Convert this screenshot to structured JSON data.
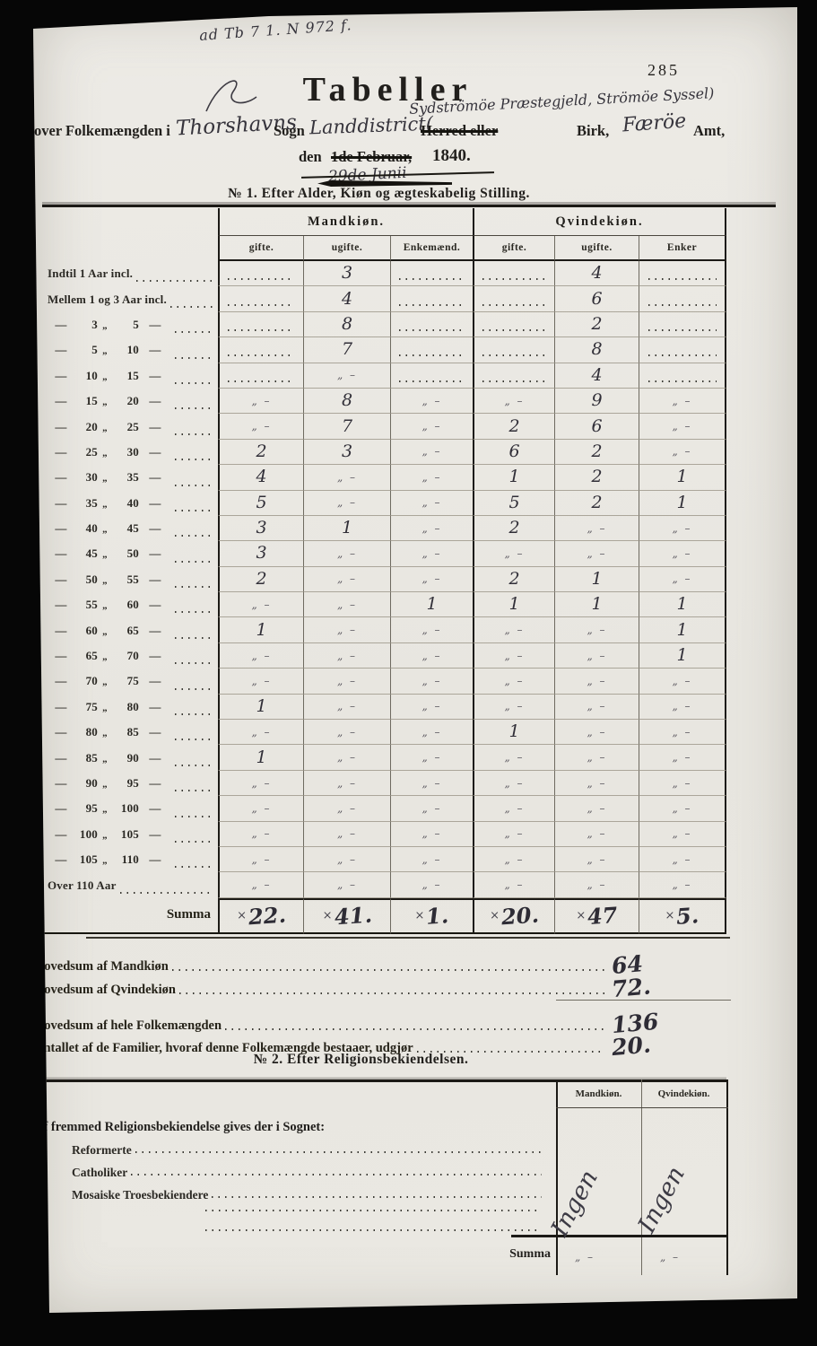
{
  "glyphs": {
    "ditto": "„ –",
    "tick": "×",
    "range_dash": "—",
    "range_quote": "„"
  },
  "page": {
    "archival_note": "ad Tb 7 1. N 972 f.",
    "page_number": "285",
    "title": "Tabeller",
    "subtitle_prefix": "over Folkemængden i",
    "place_handwritten": "Thorshavns",
    "sogn_label": "Sogn",
    "landdistrict_handwritten": "Landdistrict(",
    "struck_herred": "Herred eller",
    "interline_handwritten": "Sydströmöe Præstegjeld, Strömöe Syssel)",
    "birk_label": "Birk,",
    "amt_handwritten": "Færöe",
    "amt_label": "Amt,",
    "date_prefix": "den",
    "date_struck": "1de Februar,",
    "date_year": "1840.",
    "date_handwritten": "29de Junii"
  },
  "table1": {
    "heading": "№ 1.  Efter Alder, Kiøn og ægteskabelig Stilling.",
    "group_headers": [
      "Mandkiøn.",
      "Qvindekiøn."
    ],
    "sub_headers": [
      "gifte.",
      "ugifte.",
      "Enkemænd.",
      "gifte.",
      "ugifte.",
      "Enker"
    ],
    "rows": [
      {
        "text": "Indtil 1 Aar incl.",
        "cells": [
          ".",
          "3",
          ".",
          ".",
          "4",
          "."
        ]
      },
      {
        "text": "Mellem 1 og  3 Aar incl.",
        "cells": [
          ".",
          "4",
          ".",
          ".",
          "6",
          "."
        ]
      },
      {
        "from": "3",
        "to": "5",
        "cells": [
          ".",
          "8",
          ".",
          ".",
          "2",
          "."
        ]
      },
      {
        "from": "5",
        "to": "10",
        "cells": [
          ".",
          "7",
          ".",
          ".",
          "8",
          "."
        ]
      },
      {
        "from": "10",
        "to": "15",
        "cells": [
          ".",
          "-",
          ".",
          ".",
          "4",
          "."
        ]
      },
      {
        "from": "15",
        "to": "20",
        "cells": [
          "-",
          "8",
          "-",
          "-",
          "9",
          "-"
        ]
      },
      {
        "from": "20",
        "to": "25",
        "cells": [
          "-",
          "7",
          "-",
          "2",
          "6",
          "-"
        ]
      },
      {
        "from": "25",
        "to": "30",
        "cells": [
          "2",
          "3",
          "-",
          "6",
          "2",
          "-"
        ]
      },
      {
        "from": "30",
        "to": "35",
        "cells": [
          "4",
          "-",
          "-",
          "1",
          "2",
          "1"
        ]
      },
      {
        "from": "35",
        "to": "40",
        "cells": [
          "5",
          "-",
          "-",
          "5",
          "2",
          "1"
        ]
      },
      {
        "from": "40",
        "to": "45",
        "cells": [
          "3",
          "1",
          "-",
          "2",
          "-",
          "-"
        ]
      },
      {
        "from": "45",
        "to": "50",
        "cells": [
          "3",
          "-",
          "-",
          "-",
          "-",
          "-"
        ]
      },
      {
        "from": "50",
        "to": "55",
        "cells": [
          "2",
          "-",
          "-",
          "2",
          "1",
          "-"
        ]
      },
      {
        "from": "55",
        "to": "60",
        "cells": [
          "-",
          "-",
          "1",
          "1",
          "1",
          "1"
        ]
      },
      {
        "from": "60",
        "to": "65",
        "cells": [
          "1",
          "-",
          "-",
          "-",
          "-",
          "1"
        ]
      },
      {
        "from": "65",
        "to": "70",
        "cells": [
          "-",
          "-",
          "-",
          "-",
          "-",
          "1"
        ]
      },
      {
        "from": "70",
        "to": "75",
        "cells": [
          "-",
          "-",
          "-",
          "-",
          "-",
          "-"
        ]
      },
      {
        "from": "75",
        "to": "80",
        "cells": [
          "1",
          "-",
          "-",
          "-",
          "-",
          "-"
        ]
      },
      {
        "from": "80",
        "to": "85",
        "cells": [
          "-",
          "-",
          "-",
          "1",
          "-",
          "-"
        ]
      },
      {
        "from": "85",
        "to": "90",
        "cells": [
          "1",
          "-",
          "-",
          "-",
          "-",
          "-"
        ]
      },
      {
        "from": "90",
        "to": "95",
        "cells": [
          "-",
          "-",
          "-",
          "-",
          "-",
          "-"
        ]
      },
      {
        "from": "95",
        "to": "100",
        "cells": [
          "-",
          "-",
          "-",
          "-",
          "-",
          "-"
        ]
      },
      {
        "from": "100",
        "to": "105",
        "cells": [
          "-",
          "-",
          "-",
          "-",
          "-",
          "-"
        ]
      },
      {
        "from": "105",
        "to": "110",
        "cells": [
          "-",
          "-",
          "-",
          "-",
          "-",
          "-"
        ]
      },
      {
        "text": "Over 110 Aar",
        "cells": [
          "-",
          "-",
          "-",
          "-",
          "-",
          "-"
        ]
      }
    ],
    "summa_label": "Summa",
    "summa": [
      "22.",
      "41.",
      "1.",
      "20.",
      "47",
      "5."
    ]
  },
  "totals": [
    {
      "label": "Hovedsum af Mandkiøn",
      "value": "64"
    },
    {
      "label": "Hovedsum af Qvindekiøn",
      "value": "72."
    },
    {
      "label": "Hovedsum af hele Folkemængden",
      "value": "136"
    },
    {
      "label": "Antallet af de Familier, hvoraf denne Folkemængde bestaaer, udgjør",
      "value": "20."
    }
  ],
  "table2": {
    "heading": "№ 2.  Efter Religionsbekiendelsen.",
    "col_headers": [
      "Mandkiøn.",
      "Qvindekiøn."
    ],
    "intro": "Af fremmed Religionsbekiendelse gives der i Sognet:",
    "rows": [
      "Reformerte",
      "Catholiker",
      "Mosaiske Troesbekiendere",
      "",
      ""
    ],
    "written_answers": [
      "Ingen",
      "Ingen"
    ],
    "summa_label": "Summa",
    "summa": [
      "„ –",
      "„ –"
    ]
  }
}
